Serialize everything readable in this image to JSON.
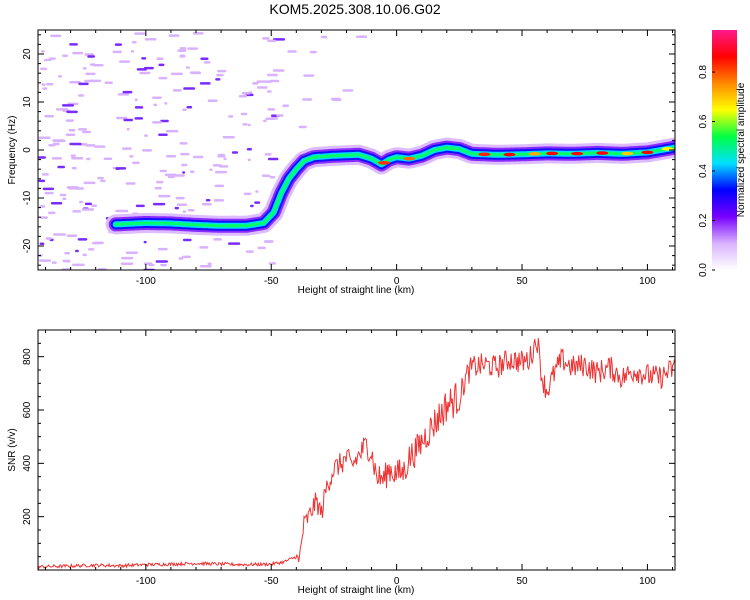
{
  "title": "KOM5.2025.308.10.06.G02",
  "chart_data": [
    {
      "type": "heatmap",
      "name": "doppler-spectrogram",
      "xlabel": "Height of straight line (km)",
      "ylabel": "Frequency (Hz)",
      "xlim": [
        -143,
        111
      ],
      "ylim": [
        -25,
        25
      ],
      "xticks": [
        -100,
        -50,
        0,
        50,
        100
      ],
      "yticks": [
        -20,
        -10,
        0,
        10,
        20
      ],
      "ridge_points": [
        [
          -112,
          -15.5
        ],
        [
          -100,
          -15.2
        ],
        [
          -90,
          -15.3
        ],
        [
          -80,
          -15.6
        ],
        [
          -70,
          -15.8
        ],
        [
          -60,
          -15.8
        ],
        [
          -53,
          -15.2
        ],
        [
          -49,
          -13
        ],
        [
          -46,
          -9
        ],
        [
          -43,
          -6
        ],
        [
          -40,
          -4
        ],
        [
          -37,
          -2.3
        ],
        [
          -33,
          -1.5
        ],
        [
          -25,
          -1.2
        ],
        [
          -15,
          -1
        ],
        [
          -10,
          -1.8
        ],
        [
          -6,
          -3
        ],
        [
          -3,
          -2
        ],
        [
          0,
          -1.5
        ],
        [
          5,
          -1.8
        ],
        [
          10,
          -1.2
        ],
        [
          15,
          0
        ],
        [
          20,
          0.5
        ],
        [
          25,
          0.2
        ],
        [
          30,
          -0.8
        ],
        [
          40,
          -1
        ],
        [
          50,
          -0.9
        ],
        [
          60,
          -0.7
        ],
        [
          70,
          -0.8
        ],
        [
          80,
          -0.6
        ],
        [
          90,
          -0.8
        ],
        [
          100,
          -0.5
        ],
        [
          111,
          0.5
        ]
      ],
      "colorbar": {
        "label": "Normalized spectral amplitude",
        "range": [
          0,
          0.97
        ],
        "ticks": [
          0.0,
          0.2,
          0.4,
          0.6,
          0.8
        ],
        "tick_labels": [
          "0.0",
          "0.2",
          "0.4",
          "0.6",
          "0.8"
        ],
        "colors": [
          "#ffffff",
          "#d9b3ff",
          "#7700ff",
          "#0000ff",
          "#00e0ff",
          "#00ff44",
          "#ffff00",
          "#ff8800",
          "#ff0000",
          "#ff1a8c"
        ]
      }
    },
    {
      "type": "line",
      "name": "snr-profile",
      "xlabel": "Height of straight line (km)",
      "ylabel": "SNR (v/v)",
      "xlim": [
        -143,
        111
      ],
      "ylim": [
        0,
        900
      ],
      "xticks": [
        -100,
        -50,
        0,
        50,
        100
      ],
      "yticks": [
        200,
        400,
        600,
        800
      ],
      "color": "#ee3333",
      "series": [
        {
          "name": "SNR",
          "points": [
            [
              -143,
              12
            ],
            [
              -130,
              15
            ],
            [
              -120,
              18
            ],
            [
              -110,
              16
            ],
            [
              -100,
              20
            ],
            [
              -90,
              22
            ],
            [
              -80,
              25
            ],
            [
              -70,
              22
            ],
            [
              -60,
              20
            ],
            [
              -50,
              22
            ],
            [
              -45,
              30
            ],
            [
              -40,
              50
            ],
            [
              -39,
              20
            ],
            [
              -38,
              100
            ],
            [
              -37,
              170
            ],
            [
              -35,
              200
            ],
            [
              -32,
              260
            ],
            [
              -30,
              210
            ],
            [
              -28,
              310
            ],
            [
              -25,
              380
            ],
            [
              -22,
              400
            ],
            [
              -20,
              420
            ],
            [
              -18,
              390
            ],
            [
              -15,
              430
            ],
            [
              -12,
              470
            ],
            [
              -10,
              440
            ],
            [
              -8,
              350
            ],
            [
              -5,
              340
            ],
            [
              -3,
              380
            ],
            [
              0,
              360
            ],
            [
              3,
              370
            ],
            [
              5,
              420
            ],
            [
              8,
              450
            ],
            [
              10,
              480
            ],
            [
              12,
              510
            ],
            [
              15,
              550
            ],
            [
              18,
              590
            ],
            [
              20,
              620
            ],
            [
              22,
              630
            ],
            [
              25,
              650
            ],
            [
              28,
              730
            ],
            [
              30,
              760
            ],
            [
              35,
              770
            ],
            [
              40,
              760
            ],
            [
              45,
              790
            ],
            [
              50,
              780
            ],
            [
              53,
              790
            ],
            [
              56,
              870
            ],
            [
              58,
              720
            ],
            [
              60,
              670
            ],
            [
              63,
              740
            ],
            [
              66,
              790
            ],
            [
              70,
              760
            ],
            [
              75,
              770
            ],
            [
              80,
              740
            ],
            [
              85,
              760
            ],
            [
              90,
              720
            ],
            [
              95,
              750
            ],
            [
              100,
              730
            ],
            [
              105,
              720
            ],
            [
              111,
              760
            ]
          ]
        }
      ]
    }
  ]
}
